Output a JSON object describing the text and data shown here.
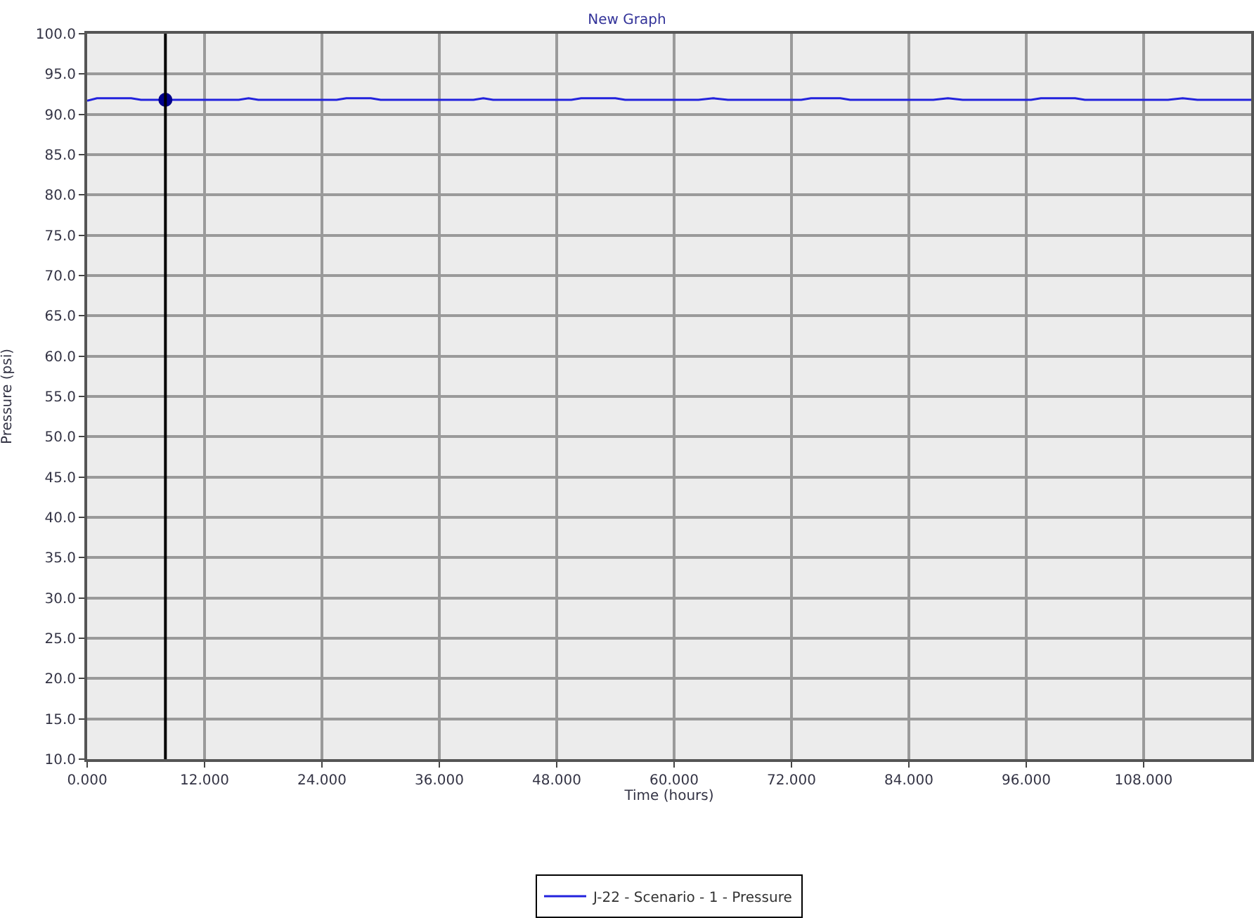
{
  "chart_data": {
    "type": "line",
    "title": "New Graph",
    "xlabel": "Time (hours)",
    "ylabel": "Pressure (psi)",
    "xlim": [
      0,
      119
    ],
    "xticks": [
      {
        "value": 0,
        "label": "0.000"
      },
      {
        "value": 12,
        "label": "12.000"
      },
      {
        "value": 24,
        "label": "24.000"
      },
      {
        "value": 36,
        "label": "36.000"
      },
      {
        "value": 48,
        "label": "48.000"
      },
      {
        "value": 60,
        "label": "60.000"
      },
      {
        "value": 72,
        "label": "72.000"
      },
      {
        "value": 84,
        "label": "84.000"
      },
      {
        "value": 96,
        "label": "96.000"
      },
      {
        "value": 108,
        "label": "108.000"
      }
    ],
    "ylim": [
      10,
      100
    ],
    "yticks": [
      {
        "value": 10,
        "label": "10.0"
      },
      {
        "value": 15,
        "label": "15.0"
      },
      {
        "value": 20,
        "label": "20.0"
      },
      {
        "value": 25,
        "label": "25.0"
      },
      {
        "value": 30,
        "label": "30.0"
      },
      {
        "value": 35,
        "label": "35.0"
      },
      {
        "value": 40,
        "label": "40.0"
      },
      {
        "value": 45,
        "label": "45.0"
      },
      {
        "value": 50,
        "label": "50.0"
      },
      {
        "value": 55,
        "label": "55.0"
      },
      {
        "value": 60,
        "label": "60.0"
      },
      {
        "value": 65,
        "label": "65.0"
      },
      {
        "value": 70,
        "label": "70.0"
      },
      {
        "value": 75,
        "label": "75.0"
      },
      {
        "value": 80,
        "label": "80.0"
      },
      {
        "value": 85,
        "label": "85.0"
      },
      {
        "value": 90,
        "label": "90.0"
      },
      {
        "value": 95,
        "label": "95.0"
      },
      {
        "value": 100,
        "label": "100.0"
      }
    ],
    "grid": true,
    "legend": "bottom",
    "marker": "none",
    "line_style": "solid",
    "ref_lines": [
      {
        "axis": "x",
        "value": 8,
        "color": "#000000",
        "line_style": "solid"
      }
    ],
    "series": [
      {
        "name": "J-22 - Scenario - 1 - Pressure",
        "color": "#2222dd",
        "x": [
          0,
          1,
          4.5,
          5.5,
          15.5,
          16.5,
          17.5,
          25.5,
          26.5,
          29,
          30,
          39.5,
          40.5,
          41.5,
          49.5,
          50.5,
          54,
          55,
          62.5,
          64,
          65.5,
          73,
          74,
          77,
          78,
          86.5,
          88,
          89.5,
          96.5,
          97.5,
          101,
          102,
          110.5,
          112,
          113.5,
          119
        ],
        "values": [
          91.7,
          92.0,
          92.0,
          91.8,
          91.8,
          92.0,
          91.8,
          91.8,
          92.0,
          92.0,
          91.8,
          91.8,
          92.0,
          91.8,
          91.8,
          92.0,
          92.0,
          91.8,
          91.8,
          92.0,
          91.8,
          91.8,
          92.0,
          92.0,
          91.8,
          91.8,
          92.0,
          91.8,
          91.8,
          92.0,
          92.0,
          91.8,
          91.8,
          92.0,
          91.8,
          91.8
        ]
      },
      {
        "type": "scatter",
        "color": "#00008b",
        "x": [
          8
        ],
        "values": [
          91.8
        ],
        "marker": "circle"
      }
    ]
  }
}
